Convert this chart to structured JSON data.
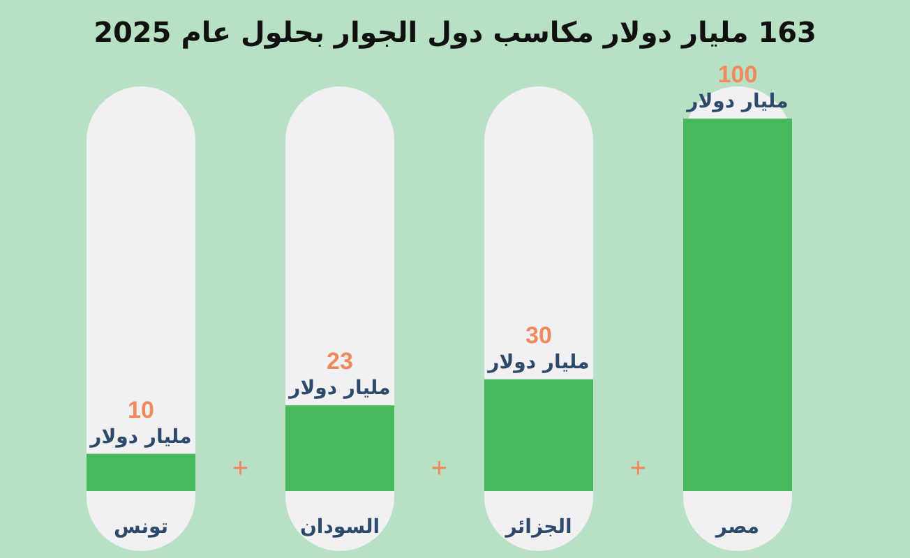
{
  "chart_data": {
    "type": "bar",
    "title": "163 مليار دولار مكاسب دول الجوار بحلول عام 2025",
    "categories": [
      "تونس",
      "السودان",
      "الجزائر",
      "مصر"
    ],
    "values": [
      10,
      23,
      30,
      100
    ],
    "color": "#48b85c",
    "ylim": [
      0,
      100
    ],
    "data_labels": true,
    "annotations": [
      "مليار دولار",
      "مليار دولار",
      "مليار دولار",
      "مليار دولار",
      "+",
      "+",
      "+"
    ]
  }
}
